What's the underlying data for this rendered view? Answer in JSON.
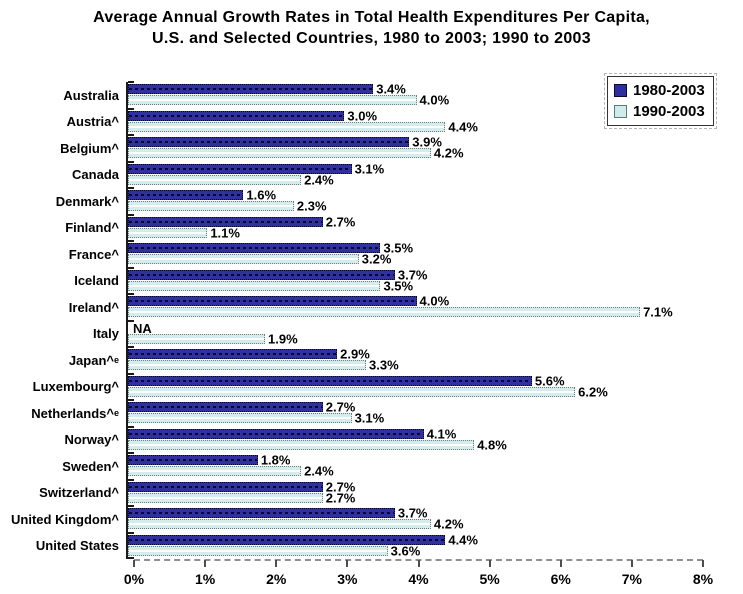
{
  "title": {
    "line1": "Average Annual Growth Rates in Total Health Expenditures Per Capita,",
    "line2": "U.S. and Selected Countries, 1980 to 2003; 1990 to 2003"
  },
  "legend": {
    "items": [
      {
        "label": "1980-2003",
        "color": "#2E2E9E"
      },
      {
        "label": "1990-2003",
        "color": "#CFEAEA"
      }
    ]
  },
  "x_axis": {
    "ticks": [
      "0%",
      "1%",
      "2%",
      "3%",
      "4%",
      "5%",
      "6%",
      "7%",
      "8%"
    ],
    "min": 0,
    "max": 8
  },
  "rows": [
    {
      "label": "Australia",
      "sup": "",
      "v1": 3.4,
      "l1": "3.4%",
      "v2": 4.0,
      "l2": "4.0%"
    },
    {
      "label": "Austria^",
      "sup": "",
      "v1": 3.0,
      "l1": "3.0%",
      "v2": 4.4,
      "l2": "4.4%"
    },
    {
      "label": "Belgium^",
      "sup": "",
      "v1": 3.9,
      "l1": "3.9%",
      "v2": 4.2,
      "l2": "4.2%"
    },
    {
      "label": "Canada",
      "sup": "",
      "v1": 3.1,
      "l1": "3.1%",
      "v2": 2.4,
      "l2": "2.4%"
    },
    {
      "label": "Denmark^",
      "sup": "",
      "v1": 1.6,
      "l1": "1.6%",
      "v2": 2.3,
      "l2": "2.3%"
    },
    {
      "label": "Finland^",
      "sup": "",
      "v1": 2.7,
      "l1": "2.7%",
      "v2": 1.1,
      "l2": "1.1%"
    },
    {
      "label": "France^",
      "sup": "",
      "v1": 3.5,
      "l1": "3.5%",
      "v2": 3.2,
      "l2": "3.2%"
    },
    {
      "label": "Iceland",
      "sup": "",
      "v1": 3.7,
      "l1": "3.7%",
      "v2": 3.5,
      "l2": "3.5%"
    },
    {
      "label": "Ireland^",
      "sup": "",
      "v1": 4.0,
      "l1": "4.0%",
      "v2": 7.1,
      "l2": "7.1%"
    },
    {
      "label": "Italy",
      "sup": "",
      "v1": null,
      "l1": "NA",
      "v2": 1.9,
      "l2": "1.9%"
    },
    {
      "label": "Japan^",
      "sup": "e",
      "v1": 2.9,
      "l1": "2.9%",
      "v2": 3.3,
      "l2": "3.3%"
    },
    {
      "label": "Luxembourg^",
      "sup": "",
      "v1": 5.6,
      "l1": "5.6%",
      "v2": 6.2,
      "l2": "6.2%"
    },
    {
      "label": "Netherlands^",
      "sup": "e",
      "v1": 2.7,
      "l1": "2.7%",
      "v2": 3.1,
      "l2": "3.1%"
    },
    {
      "label": "Norway^",
      "sup": "",
      "v1": 4.1,
      "l1": "4.1%",
      "v2": 4.8,
      "l2": "4.8%"
    },
    {
      "label": "Sweden^",
      "sup": "",
      "v1": 1.8,
      "l1": "1.8%",
      "v2": 2.4,
      "l2": "2.4%"
    },
    {
      "label": "Switzerland^",
      "sup": "",
      "v1": 2.7,
      "l1": "2.7%",
      "v2": 2.7,
      "l2": "2.7%"
    },
    {
      "label": "United Kingdom^",
      "sup": "",
      "v1": 3.7,
      "l1": "3.7%",
      "v2": 4.2,
      "l2": "4.2%"
    },
    {
      "label": "United States",
      "sup": "",
      "v1": 4.4,
      "l1": "4.4%",
      "v2": 3.6,
      "l2": "3.6%"
    }
  ],
  "chart_data": {
    "type": "bar",
    "orientation": "horizontal",
    "title": "Average Annual Growth Rates in Total Health Expenditures Per Capita, U.S. and Selected Countries, 1980 to 2003; 1990 to 2003",
    "categories": [
      "Australia",
      "Austria^",
      "Belgium^",
      "Canada",
      "Denmark^",
      "Finland^",
      "France^",
      "Iceland",
      "Ireland^",
      "Italy",
      "Japan^e",
      "Luxembourg^",
      "Netherlands^e",
      "Norway^",
      "Sweden^",
      "Switzerland^",
      "United Kingdom^",
      "United States"
    ],
    "series": [
      {
        "name": "1980-2003",
        "color": "#30309F",
        "values": [
          3.4,
          3.0,
          3.9,
          3.1,
          1.6,
          2.7,
          3.5,
          3.7,
          4.0,
          null,
          2.9,
          5.6,
          2.7,
          4.1,
          1.8,
          2.7,
          3.7,
          4.4
        ]
      },
      {
        "name": "1990-2003",
        "color": "#D4EDEC",
        "values": [
          4.0,
          4.4,
          4.2,
          2.4,
          2.3,
          1.1,
          3.2,
          3.5,
          7.1,
          1.9,
          3.3,
          6.2,
          3.1,
          4.8,
          2.4,
          2.7,
          4.2,
          3.6
        ]
      }
    ],
    "na_label": "NA",
    "xlabel": "",
    "ylabel": "",
    "xlim": [
      0,
      8
    ],
    "x_tick_labels": [
      "0%",
      "1%",
      "2%",
      "3%",
      "4%",
      "5%",
      "6%",
      "7%",
      "8%"
    ],
    "grid": false,
    "legend_position": "top-right",
    "value_labels_shown": true
  }
}
